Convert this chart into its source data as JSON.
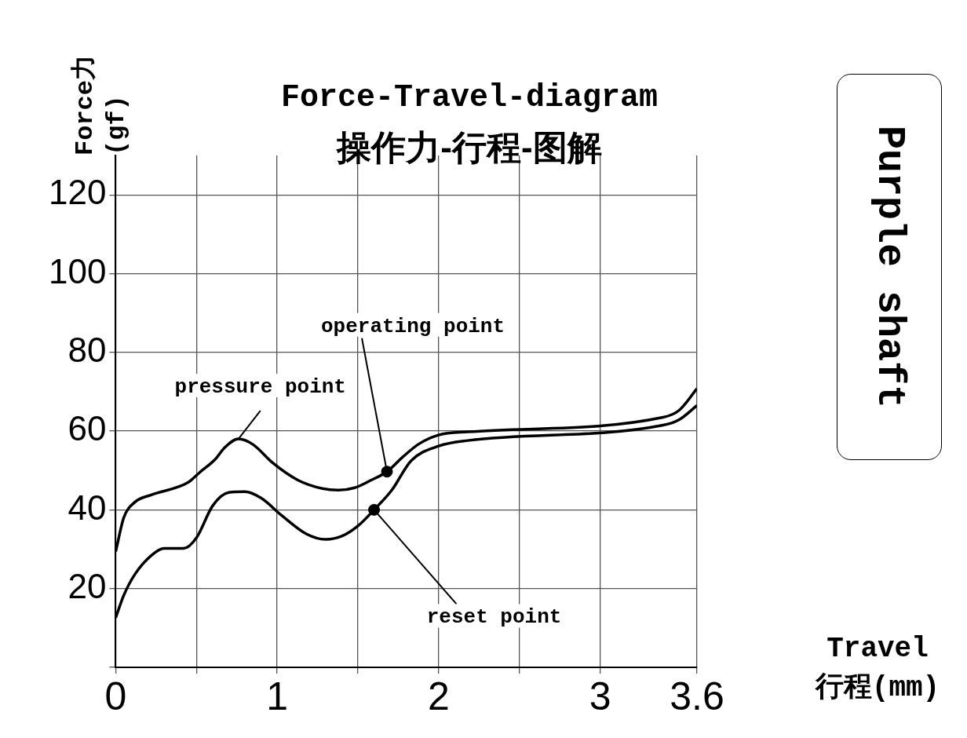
{
  "chart_data": {
    "type": "line",
    "title": "Force-Travel-diagram",
    "subtitle": "操作力-行程-图解",
    "xlabel": "Travel\n行程(mm)",
    "ylabel": "Force力\n(gf)",
    "xlim": [
      0,
      3.6
    ],
    "xticks": [
      0,
      {
        "value": 0.5,
        "label": null
      },
      1,
      {
        "value": 1.5,
        "label": null
      },
      2,
      {
        "value": 2.5,
        "label": null
      },
      3,
      3.6
    ],
    "ylim": [
      0,
      130
    ],
    "yticks": [
      {
        "value": 0,
        "label": null
      },
      20,
      40,
      60,
      80,
      100,
      120
    ],
    "grid": true,
    "legend": false,
    "marker": "none",
    "line_style": "solid",
    "series": [
      {
        "color": "#000000",
        "x": [
          0,
          0.05,
          0.12,
          0.22,
          0.45,
          0.52,
          0.62,
          0.67,
          0.76,
          0.85,
          0.97,
          1.13,
          1.28,
          1.38,
          1.48,
          1.58,
          1.68,
          1.78,
          1.88,
          2.0,
          2.18,
          3.39,
          3.49,
          3.6
        ],
        "values": [
          29.4,
          38,
          42,
          43.8,
          47,
          49.5,
          53,
          55.6,
          58,
          56.6,
          52,
          47.5,
          45.4,
          45,
          45.6,
          47.5,
          49.7,
          53.5,
          56.8,
          59,
          59.8,
          63.5,
          65.3,
          70.8
        ]
      },
      {
        "color": "#000000",
        "x": [
          0,
          0.05,
          0.12,
          0.22,
          0.3,
          0.42,
          0.5,
          0.6,
          0.7,
          0.8,
          0.9,
          1.03,
          1.18,
          1.3,
          1.4,
          1.5,
          1.6,
          1.71,
          1.83,
          2.0,
          2.18,
          3.39,
          3.49,
          3.6
        ],
        "values": [
          12.6,
          18.3,
          23.7,
          28.4,
          30.2,
          30.2,
          32.9,
          41,
          44.4,
          44.6,
          43,
          38.5,
          33.9,
          32.5,
          33.3,
          35.9,
          40,
          45,
          52.5,
          56.2,
          57.6,
          61.5,
          62.9,
          66.5
        ]
      },
      {
        "type": "scatter",
        "color": "#000000",
        "marker": "circle",
        "x": [
          1.68,
          1.6
        ],
        "values": [
          49.7,
          40
        ]
      }
    ],
    "annotations": [
      {
        "text": "pressure point",
        "x": 0.76,
        "y": 58
      },
      {
        "text": "operating point",
        "x": 1.68,
        "y": 49.7
      },
      {
        "text": "reset point",
        "x": 1.6,
        "y": 40
      },
      "Purple shaft"
    ]
  }
}
